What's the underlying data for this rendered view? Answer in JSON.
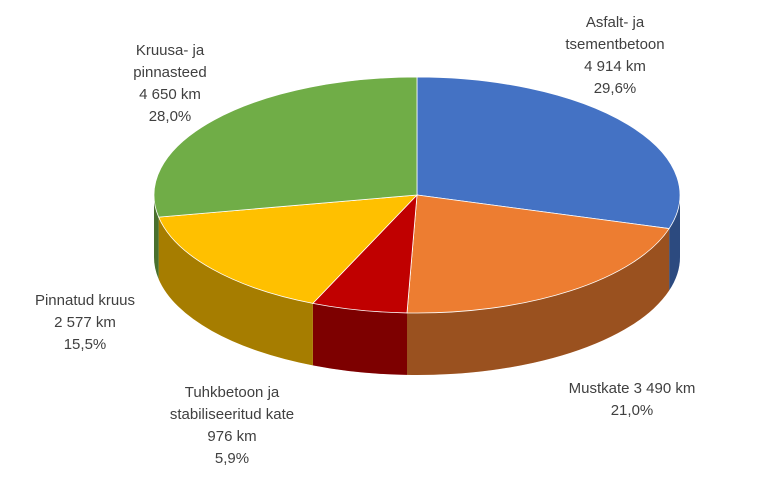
{
  "chart_data": {
    "type": "pie3d",
    "categories": [
      "Asfalt- ja tsementbetoon",
      "Mustkate",
      "Tuhkbetoon ja stabiliseeritud kate",
      "Pinnatud kruus",
      "Kruusa- ja pinnasteed"
    ],
    "values": [
      4914,
      3490,
      976,
      2577,
      4650
    ],
    "value_labels": [
      "4 914 km",
      "3 490 km",
      "976 km",
      "2 577 km",
      "4 650 km"
    ],
    "percentages": [
      29.6,
      21.0,
      5.9,
      15.5,
      28.0
    ],
    "percentage_labels": [
      "29,6%",
      "21,0%",
      "5,9%",
      "15,5%",
      "28,0%"
    ],
    "colors": [
      "#4472c4",
      "#ed7d31",
      "#c00000",
      "#ffc000",
      "#70ad47"
    ]
  }
}
